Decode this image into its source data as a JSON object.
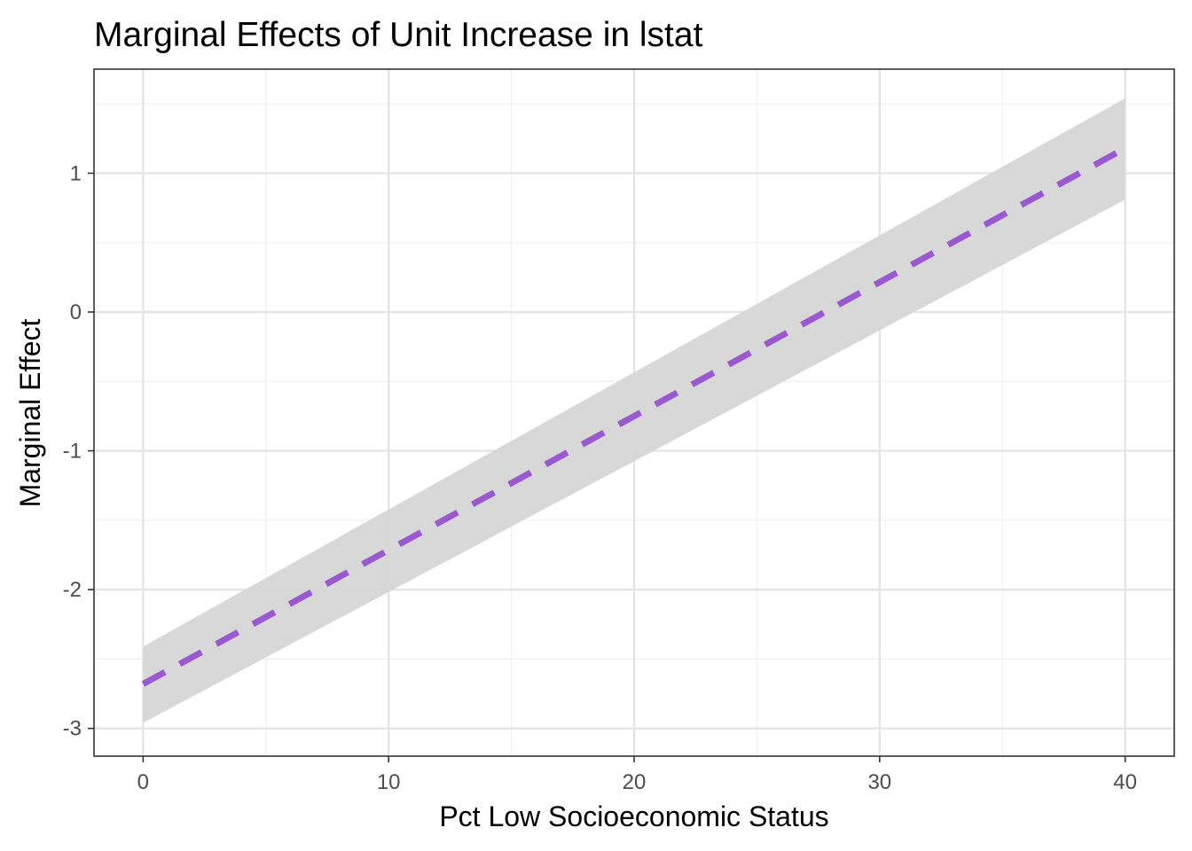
{
  "chart_data": {
    "type": "line",
    "title": "Marginal Effects of Unit Increase in lstat",
    "xlabel": "Pct Low Socioeconomic Status",
    "ylabel": "Marginal Effect",
    "xlim": [
      -2,
      42
    ],
    "ylim": [
      -3.2,
      1.75
    ],
    "x_ticks": [
      0,
      10,
      20,
      30,
      40
    ],
    "x_tick_labels": [
      "0",
      "10",
      "20",
      "30",
      "40"
    ],
    "y_ticks": [
      -3,
      -2,
      -1,
      0,
      1
    ],
    "y_tick_labels": [
      "-3",
      "-2",
      "-1",
      "0",
      "1"
    ],
    "grid": true,
    "series": [
      {
        "x": [
          0,
          40
        ],
        "y": [
          -2.68,
          1.18
        ],
        "lower": [
          -2.96,
          0.81
        ],
        "upper": [
          -2.41,
          1.54
        ]
      }
    ],
    "colors": {
      "line": "#9b59d0",
      "ribbon": "#d6d6d6",
      "grid_major": "#e5e5e5",
      "grid_minor": "#f0f0f0",
      "panel_border": "#333333"
    },
    "line_style": "dashed"
  }
}
